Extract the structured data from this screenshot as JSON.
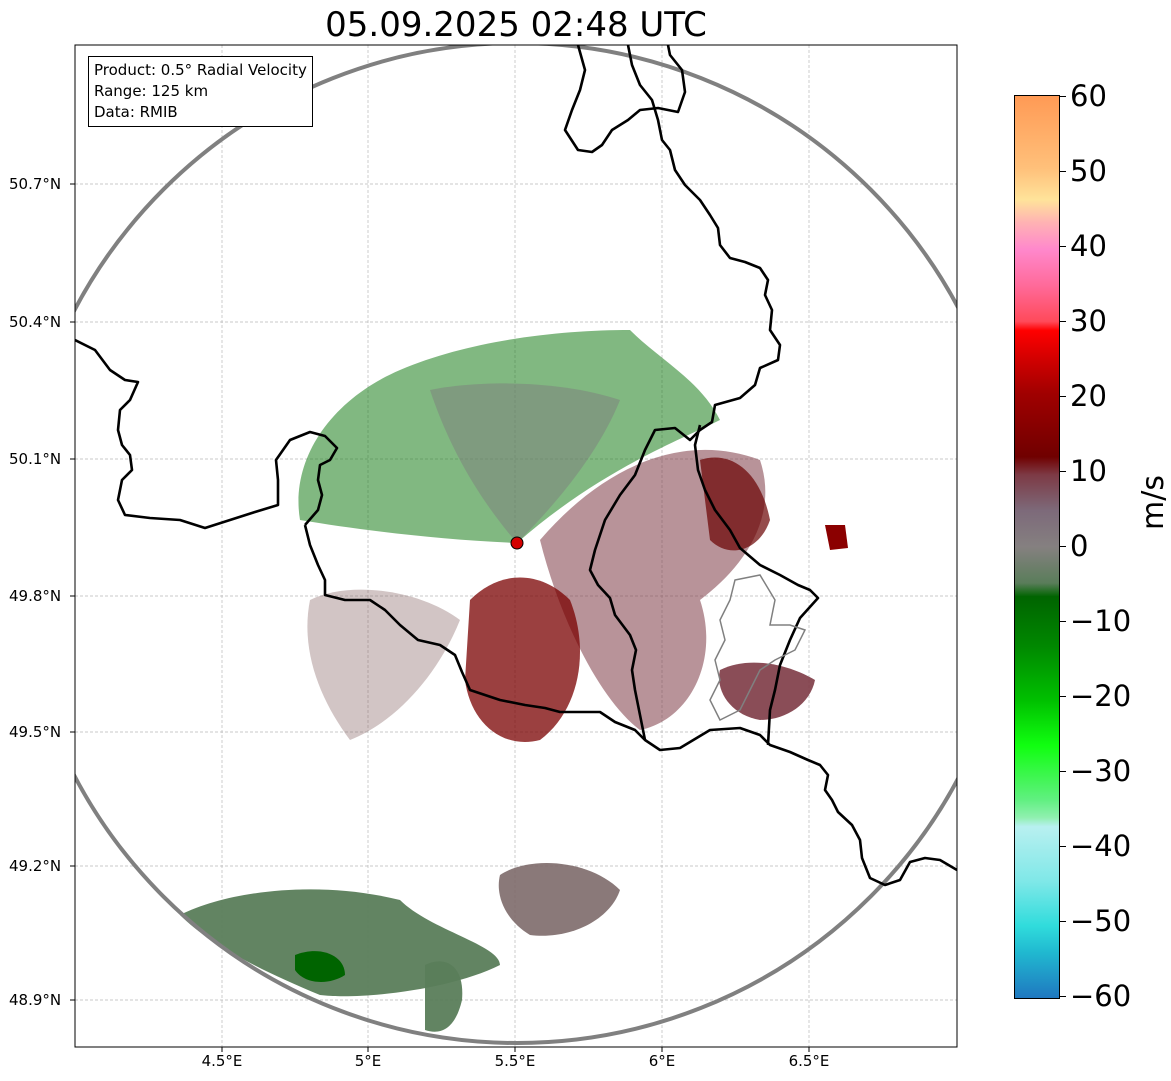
{
  "title": "05.09.2025 02:48 UTC",
  "info_box": {
    "product": "Product: 0.5° Radial Velocity",
    "range": "Range: 125 km",
    "source": "Data: RMIB"
  },
  "lat_labels": [
    "50.7°N",
    "50.4°N",
    "50.1°N",
    "49.8°N",
    "49.5°N",
    "49.2°N",
    "48.9°N"
  ],
  "lon_labels": [
    "4.5°E",
    "5°E",
    "5.5°E",
    "6°E",
    "6.5°E"
  ],
  "colorbar": {
    "unit": "m/s",
    "min": -60,
    "max": 60,
    "ticks": [
      "60",
      "50",
      "40",
      "30",
      "20",
      "10",
      "0",
      "−10",
      "−20",
      "−30",
      "−40",
      "−50",
      "−60"
    ]
  },
  "colors": {
    "range_ring": "#808080",
    "borders": "#000000",
    "radar_site": "#d40000"
  }
}
